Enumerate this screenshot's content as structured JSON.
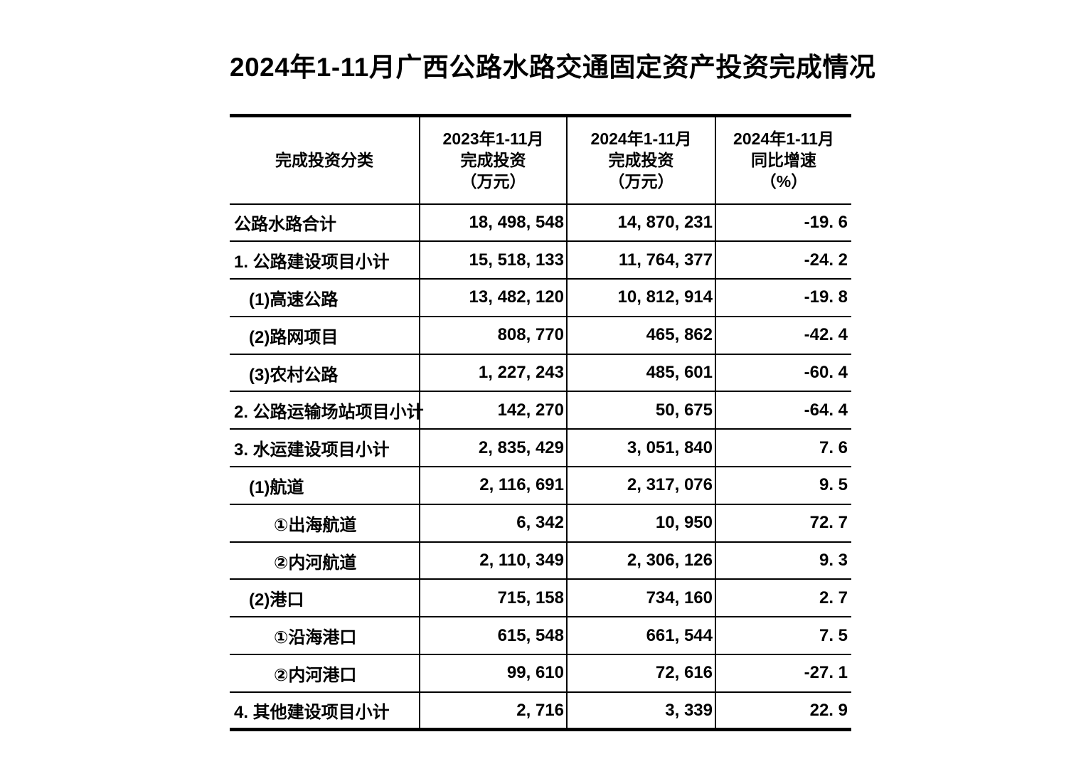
{
  "title": "2024年1-11月广西公路水路交通固定资产投资完成情况",
  "table": {
    "header": {
      "col1": "完成投资分类",
      "col2_lines": [
        "2023年1-11月",
        "完成投资",
        "（万元）"
      ],
      "col3_lines": [
        "2024年1-11月",
        "完成投资",
        "（万元）"
      ],
      "col4_lines": [
        "2024年1-11月",
        "同比增速",
        "（%）"
      ]
    },
    "rows": [
      {
        "category": "公路水路合计",
        "indent": 0,
        "invest_2023": "18, 498, 548",
        "invest_2024": "14, 870, 231",
        "growth": "-19. 6"
      },
      {
        "category": "1. 公路建设项目小计",
        "indent": 0,
        "invest_2023": "15, 518, 133",
        "invest_2024": "11, 764, 377",
        "growth": "-24. 2"
      },
      {
        "category": "(1)高速公路",
        "indent": 1,
        "invest_2023": "13, 482, 120",
        "invest_2024": "10, 812, 914",
        "growth": "-19. 8"
      },
      {
        "category": "(2)路网项目",
        "indent": 1,
        "invest_2023": "808, 770",
        "invest_2024": "465, 862",
        "growth": "-42. 4"
      },
      {
        "category": "(3)农村公路",
        "indent": 1,
        "invest_2023": "1, 227, 243",
        "invest_2024": "485, 601",
        "growth": "-60. 4"
      },
      {
        "category": "2. 公路运输场站项目小计",
        "indent": 0,
        "invest_2023": "142, 270",
        "invest_2024": "50, 675",
        "growth": "-64. 4"
      },
      {
        "category": "3. 水运建设项目小计",
        "indent": 0,
        "invest_2023": "2, 835, 429",
        "invest_2024": "3, 051, 840",
        "growth": "7. 6"
      },
      {
        "category": "(1)航道",
        "indent": 1,
        "invest_2023": "2, 116, 691",
        "invest_2024": "2, 317, 076",
        "growth": "9. 5"
      },
      {
        "category": "①出海航道",
        "indent": 2,
        "invest_2023": "6, 342",
        "invest_2024": "10, 950",
        "growth": "72. 7"
      },
      {
        "category": "②内河航道",
        "indent": 2,
        "invest_2023": "2, 110, 349",
        "invest_2024": "2, 306, 126",
        "growth": "9. 3"
      },
      {
        "category": "(2)港口",
        "indent": 1,
        "invest_2023": "715, 158",
        "invest_2024": "734, 160",
        "growth": "2. 7"
      },
      {
        "category": "①沿海港口",
        "indent": 2,
        "invest_2023": "615, 548",
        "invest_2024": "661, 544",
        "growth": "7. 5"
      },
      {
        "category": "②内河港口",
        "indent": 2,
        "invest_2023": "99, 610",
        "invest_2024": "72, 616",
        "growth": "-27. 1"
      },
      {
        "category": "4. 其他建设项目小计",
        "indent": 0,
        "invest_2023": "2, 716",
        "invest_2024": "3, 339",
        "growth": "22. 9"
      }
    ]
  },
  "chart_data": {
    "type": "table",
    "title": "2024年1-11月广西公路水路交通固定资产投资完成情况",
    "columns": [
      "完成投资分类",
      "2023年1-11月完成投资（万元）",
      "2024年1-11月完成投资（万元）",
      "2024年1-11月同比增速（%）"
    ],
    "rows": [
      [
        "公路水路合计",
        18498548,
        14870231,
        -19.6
      ],
      [
        "1.公路建设项目小计",
        15518133,
        11764377,
        -24.2
      ],
      [
        "(1)高速公路",
        13482120,
        10812914,
        -19.8
      ],
      [
        "(2)路网项目",
        808770,
        465862,
        -42.4
      ],
      [
        "(3)农村公路",
        1227243,
        485601,
        -60.4
      ],
      [
        "2.公路运输场站项目小计",
        142270,
        50675,
        -64.4
      ],
      [
        "3.水运建设项目小计",
        2835429,
        3051840,
        7.6
      ],
      [
        "(1)航道",
        2116691,
        2317076,
        9.5
      ],
      [
        "①出海航道",
        6342,
        10950,
        72.7
      ],
      [
        "②内河航道",
        2110349,
        2306126,
        9.3
      ],
      [
        "(2)港口",
        715158,
        734160,
        2.7
      ],
      [
        "①沿海港口",
        615548,
        661544,
        7.5
      ],
      [
        "②内河港口",
        99610,
        72616,
        -27.1
      ],
      [
        "4.其他建设项目小计",
        2716,
        3339,
        22.9
      ]
    ]
  }
}
